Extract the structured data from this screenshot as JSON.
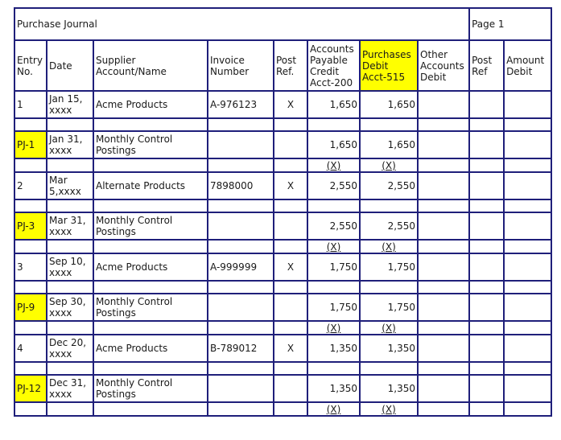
{
  "journal": {
    "title": "Purchase Journal",
    "page": "Page 1",
    "headers": {
      "entry": "Entry No.",
      "date": "Date",
      "supplier": "Supplier Account/Name",
      "invoice": "Invoice Number",
      "post_ref": "Post Ref.",
      "ap": "Accounts Payable Credit Acct-200",
      "purchases": "Purchases Debit Acct-515",
      "other": "Other Accounts Debit",
      "post_ref2": "Post Ref",
      "amount": "Amount Debit"
    },
    "posted_mark": "(X)",
    "highlight_color": "#ffff00",
    "border_color": "#1f1f7a",
    "rows": [
      {
        "entry": "1",
        "date": "Jan 15, xxxx",
        "supplier": "Acme Products",
        "invoice": "A-976123",
        "post": "X",
        "ap": "1,650",
        "purchases": "1,650",
        "highlight": false
      },
      {
        "entry": "PJ-1",
        "date": "Jan 31, xxxx",
        "supplier": "Monthly Control Postings",
        "invoice": "",
        "post": "",
        "ap": "1,650",
        "purchases": "1,650",
        "highlight": true
      },
      {
        "entry": "2",
        "date": "Mar 5,xxxx",
        "supplier": "Alternate Products",
        "invoice": "7898000",
        "post": "X",
        "ap": "2,550",
        "purchases": "2,550",
        "highlight": false
      },
      {
        "entry": "PJ-3",
        "date": "Mar 31, xxxx",
        "supplier": "Monthly Control Postings",
        "invoice": "",
        "post": "",
        "ap": "2,550",
        "purchases": "2,550",
        "highlight": true
      },
      {
        "entry": "3",
        "date": "Sep 10, xxxx",
        "supplier": "Acme Products",
        "invoice": "A-999999",
        "post": "X",
        "ap": "1,750",
        "purchases": "1,750",
        "highlight": false
      },
      {
        "entry": "PJ-9",
        "date": "Sep 30, xxxx",
        "supplier": "Monthly Control Postings",
        "invoice": "",
        "post": "",
        "ap": "1,750",
        "purchases": "1,750",
        "highlight": true
      },
      {
        "entry": "4",
        "date": "Dec 20, xxxx",
        "supplier": "Acme Products",
        "invoice": "B-789012",
        "post": "X",
        "ap": "1,350",
        "purchases": "1,350",
        "highlight": false
      },
      {
        "entry": "PJ-12",
        "date": "Dec 31, xxxx",
        "supplier": "Monthly Control Postings",
        "invoice": "",
        "post": "",
        "ap": "1,350",
        "purchases": "1,350",
        "highlight": true
      }
    ]
  }
}
